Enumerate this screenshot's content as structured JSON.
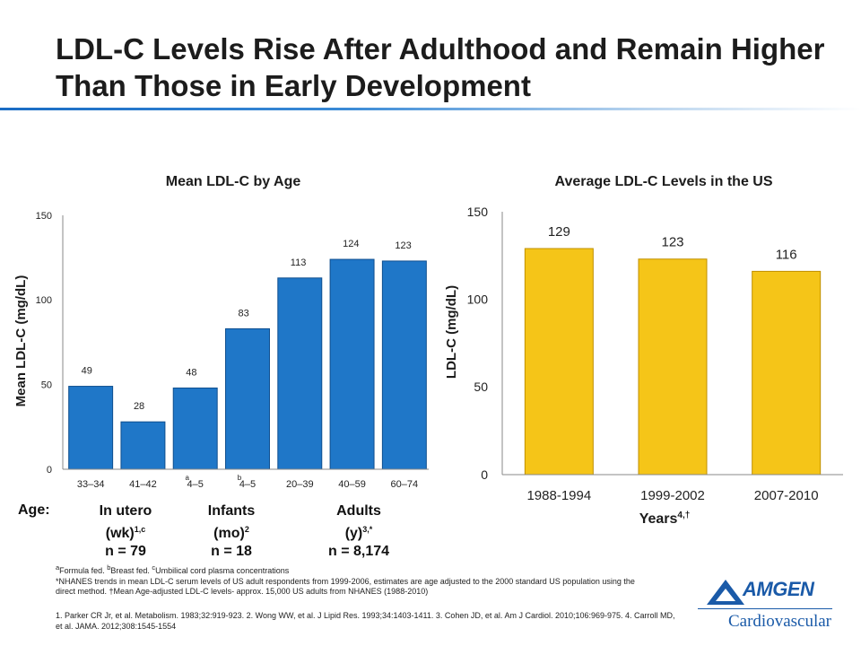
{
  "title": "LDL-C Levels Rise After Adulthood and Remain Higher Than Those in Early Development",
  "colors": {
    "left_bar": "#1f77c8",
    "right_bar": "#f5c518",
    "accent": "#1a6cc4"
  },
  "chart_data": [
    {
      "type": "bar",
      "title": "Mean LDL-C by Age",
      "ylabel": "Mean LDL-C (mg/dL)",
      "xlabel": "",
      "ylim": [
        0,
        150
      ],
      "yticks": [
        "0",
        "50",
        "100",
        "150"
      ],
      "categories": [
        "33–34",
        "41–42",
        "4–5",
        "4–5",
        "20–39",
        "40–59",
        "60–74"
      ],
      "values": [
        49,
        28,
        48,
        83,
        113,
        124,
        123
      ],
      "category_marks": [
        "",
        "",
        "a",
        "b",
        "",
        "",
        ""
      ],
      "grid": false
    },
    {
      "type": "bar",
      "title": "Average LDL-C Levels in the US",
      "ylabel": "LDL-C (mg/dL)",
      "xlabel": "Years",
      "xlabel_sup": "4,†",
      "ylim": [
        0,
        150
      ],
      "yticks": [
        "0",
        "50",
        "100",
        "150"
      ],
      "categories": [
        "1988-1994",
        "1999-2002",
        "2007-2010"
      ],
      "values": [
        129,
        123,
        116
      ],
      "grid": false
    }
  ],
  "age_groups": {
    "label": "Age:",
    "groups": [
      {
        "name": "In utero",
        "unit": "(wk)",
        "sup": "1,c",
        "n": "n = 79"
      },
      {
        "name": "Infants",
        "unit": "(mo)",
        "sup": "2",
        "n": "n = 18"
      },
      {
        "name": "Adults",
        "unit": "(y)",
        "sup": "3,*",
        "n": "n = 8,174"
      }
    ]
  },
  "footnotes": {
    "line1_a": "Formula fed. ",
    "line1_b": "Breast fed. ",
    "line1_c": "Umbilical cord plasma concentrations",
    "sup_a": "a",
    "sup_b": "b",
    "sup_c": "c",
    "line2": "*NHANES trends in mean LDL-C serum levels of US adult respondents from 1999-2006, estimates are age adjusted to the 2000 standard US population using the direct method. †Mean Age-adjusted LDL-C levels- approx. 15,000 US adults from NHANES (1988-2010)"
  },
  "references": "1. Parker CR Jr, et al. Metabolism. 1983;32:919-923. 2. Wong WW, et al. J Lipid Res. 1993;34:1403-1411. 3. Cohen JD, et al. Am J Cardiol. 2010;106:969-975. 4. Carroll MD, et al. JAMA. 2012;308:1545-1554",
  "logo": {
    "wordmark": "AMGEN",
    "division": "Cardiovascular"
  }
}
